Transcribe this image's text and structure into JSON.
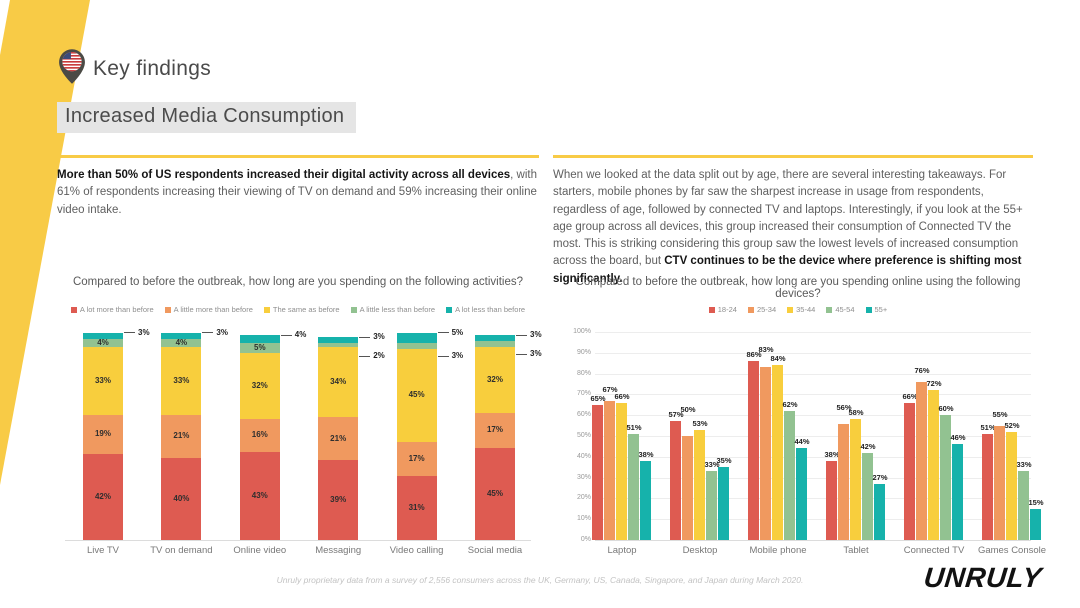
{
  "page": {
    "header": {
      "title": "Key findings",
      "icon": "us-flag-pin"
    },
    "section_title": "Increased Media Consumption",
    "left_text": {
      "bold": "More than 50% of US respondents increased their digital activity across all devices",
      "rest": ", with 61% of respondents increasing their viewing of TV on demand and 59% increasing their online video intake."
    },
    "right_text": {
      "lead": "When we looked at the data split out by age, there are several interesting takeaways. For starters, mobile phones by far saw the sharpest increase in usage from respondents, regardless of age, followed by connected TV and laptops. Interestingly, if you look at the 55+ age group across all devices, this group increased their consumption of Connected TV the most. This is striking considering this group saw the lowest levels of increased consumption across the board, but ",
      "bold": "CTV continues to be the device where preference is shifting most significantly."
    },
    "footnote": "Unruly proprietary data from a survey of 2,556 consumers across the UK, Germany, US, Canada, Singapore, and Japan during March 2020.",
    "logo": "UNRULY"
  },
  "colors": {
    "accent_yellow": "#F8CB46",
    "section_title_bg": "#E5E5E5",
    "red": "#DE5B51",
    "orange": "#F0995F",
    "yellow": "#F8CE3D",
    "green": "#92C291",
    "teal": "#16B2AB"
  },
  "chart_data": [
    {
      "type": "bar",
      "variant": "stacked",
      "title": "Compared to before the outbreak, how long are you spending on the following activities?",
      "legend_position": "top",
      "grid": false,
      "value_labels": "percent",
      "categories": [
        "Live TV",
        "TV on demand",
        "Online video",
        "Messaging",
        "Video calling",
        "Social media"
      ],
      "series": [
        {
          "name": "A lot more than before",
          "color": "#DE5B51",
          "values": [
            42,
            40,
            43,
            39,
            31,
            45
          ]
        },
        {
          "name": "A little more than before",
          "color": "#F0995F",
          "values": [
            19,
            21,
            16,
            21,
            17,
            17
          ]
        },
        {
          "name": "The same as before",
          "color": "#F8CE3D",
          "values": [
            33,
            33,
            32,
            34,
            45,
            32
          ]
        },
        {
          "name": "A little less than before",
          "color": "#92C291",
          "values": [
            4,
            4,
            5,
            2,
            3,
            3
          ]
        },
        {
          "name": "A lot less than before",
          "color": "#16B2AB",
          "values": [
            3,
            3,
            4,
            3,
            5,
            3
          ]
        }
      ]
    },
    {
      "type": "bar",
      "variant": "grouped",
      "title": "Compared to before the outbreak, how long are you spending online using the following devices?",
      "legend_position": "top",
      "grid": true,
      "ylim": [
        0,
        100
      ],
      "yticks": [
        "0%",
        "10%",
        "20%",
        "30%",
        "40%",
        "50%",
        "60%",
        "70%",
        "80%",
        "90%",
        "100%"
      ],
      "value_labels": "percent",
      "categories": [
        "Laptop",
        "Desktop",
        "Mobile phone",
        "Tablet",
        "Connected TV",
        "Games Console"
      ],
      "series": [
        {
          "name": "18-24",
          "color": "#DE5B51",
          "values": [
            65,
            57,
            86,
            38,
            66,
            51
          ]
        },
        {
          "name": "25-34",
          "color": "#F0995F",
          "values": [
            67,
            50,
            83,
            56,
            76,
            55
          ]
        },
        {
          "name": "35-44",
          "color": "#F8CE3D",
          "values": [
            66,
            53,
            84,
            58,
            72,
            52
          ]
        },
        {
          "name": "45-54",
          "color": "#92C291",
          "values": [
            51,
            33,
            62,
            42,
            60,
            33
          ]
        },
        {
          "name": "55+",
          "color": "#16B2AB",
          "values": [
            38,
            35,
            44,
            27,
            46,
            15
          ]
        }
      ]
    }
  ]
}
